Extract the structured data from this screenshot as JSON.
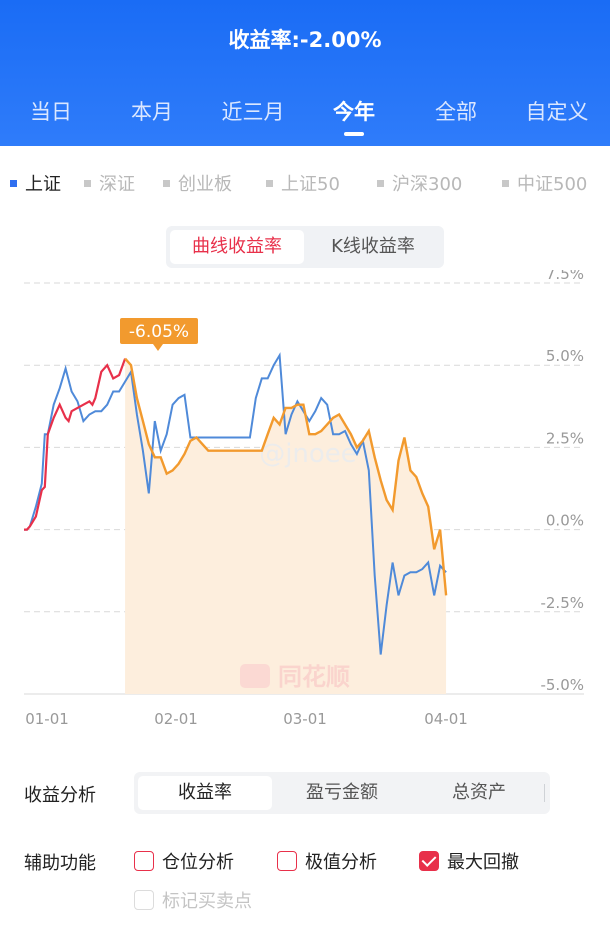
{
  "header": {
    "title": "收益率:-2.00%",
    "tabs": [
      "当日",
      "本月",
      "近三月",
      "今年",
      "全部",
      "自定义"
    ],
    "active_tab": "今年"
  },
  "indices": [
    "上证",
    "深证",
    "创业板",
    "上证50",
    "沪深300",
    "中证500"
  ],
  "active_index": "上证",
  "chart_toggle": {
    "options": [
      "曲线收益率",
      "K线收益率"
    ],
    "active": "曲线收益率"
  },
  "chart_data": {
    "type": "line",
    "y_ticks": [
      "7.5%",
      "5.0%",
      "2.5%",
      "0.0%",
      "-2.5%",
      "-5.0%"
    ],
    "x_ticks": [
      "01-01",
      "02-01",
      "03-01",
      "04-01"
    ],
    "ylim": [
      -5.0,
      7.5
    ],
    "drawdown_label": "-6.05%",
    "watermark": "@jnoee",
    "logo_text": "同花顺",
    "colors": {
      "return_line": "#f29a2e",
      "drawdown_line": "#e8304a",
      "index_line": "#4f8ad9",
      "drawdown_fill": "#fdeedd"
    },
    "series": [
      {
        "values": [
          [
            0,
            0.0
          ],
          [
            0.5,
            0.0
          ],
          [
            1,
            0.1
          ],
          [
            2,
            0.4
          ],
          [
            3,
            1.2
          ],
          [
            3.5,
            1.3
          ],
          [
            4,
            2.9
          ],
          [
            5,
            3.4
          ],
          [
            6,
            3.8
          ],
          [
            7,
            3.4
          ],
          [
            7.5,
            3.3
          ],
          [
            8,
            3.6
          ],
          [
            9,
            3.7
          ],
          [
            10,
            3.8
          ],
          [
            11,
            3.9
          ],
          [
            11.5,
            3.8
          ],
          [
            12,
            4.0
          ],
          [
            13,
            4.8
          ],
          [
            14,
            5.0
          ],
          [
            15,
            4.6
          ],
          [
            16,
            4.7
          ],
          [
            17,
            5.2
          ]
        ]
      },
      {
        "values": [
          [
            17,
            5.2
          ],
          [
            18,
            5.0
          ],
          [
            19,
            4.0
          ],
          [
            20,
            3.3
          ],
          [
            21,
            2.6
          ],
          [
            22,
            2.2
          ],
          [
            23,
            2.2
          ],
          [
            24,
            1.7
          ],
          [
            25,
            1.8
          ],
          [
            26,
            2.0
          ],
          [
            27,
            2.3
          ],
          [
            28,
            2.7
          ],
          [
            29,
            2.8
          ],
          [
            30,
            2.6
          ],
          [
            31,
            2.4
          ],
          [
            32,
            2.4
          ],
          [
            33,
            2.4
          ],
          [
            34,
            2.4
          ],
          [
            35,
            2.4
          ],
          [
            36,
            2.4
          ],
          [
            37,
            2.4
          ],
          [
            38,
            2.4
          ],
          [
            39,
            2.4
          ],
          [
            40,
            2.4
          ],
          [
            41,
            2.9
          ],
          [
            42,
            3.4
          ],
          [
            43,
            3.2
          ],
          [
            44,
            3.7
          ],
          [
            45,
            3.7
          ],
          [
            46,
            3.8
          ],
          [
            47,
            3.8
          ],
          [
            48,
            2.9
          ],
          [
            49,
            2.9
          ],
          [
            50,
            3.0
          ],
          [
            51,
            3.2
          ],
          [
            52,
            3.4
          ],
          [
            53,
            3.5
          ],
          [
            54,
            3.2
          ],
          [
            55,
            2.9
          ],
          [
            56,
            2.5
          ],
          [
            57,
            2.7
          ],
          [
            58,
            3.0
          ],
          [
            59,
            2.2
          ],
          [
            60,
            1.5
          ],
          [
            61,
            0.9
          ],
          [
            62,
            0.6
          ],
          [
            63,
            2.1
          ],
          [
            64,
            2.8
          ],
          [
            65,
            1.8
          ],
          [
            66,
            1.6
          ],
          [
            67,
            1.1
          ],
          [
            68,
            0.7
          ],
          [
            69,
            -0.6
          ],
          [
            70,
            0.0
          ],
          [
            71,
            -2.0
          ]
        ]
      },
      {
        "values": [
          [
            0,
            0.0
          ],
          [
            0.5,
            0.0
          ],
          [
            1,
            0.1
          ],
          [
            2,
            0.7
          ],
          [
            3,
            1.4
          ],
          [
            3.5,
            2.9
          ],
          [
            4,
            2.9
          ],
          [
            5,
            3.8
          ],
          [
            6,
            4.3
          ],
          [
            7,
            4.9
          ],
          [
            8,
            4.2
          ],
          [
            9,
            3.9
          ],
          [
            10,
            3.3
          ],
          [
            11,
            3.5
          ],
          [
            12,
            3.6
          ],
          [
            13,
            3.6
          ],
          [
            14,
            3.8
          ],
          [
            15,
            4.2
          ],
          [
            16,
            4.2
          ],
          [
            17,
            4.5
          ],
          [
            18,
            4.8
          ],
          [
            19,
            3.5
          ],
          [
            20,
            2.4
          ],
          [
            21,
            1.1
          ],
          [
            22,
            3.3
          ],
          [
            23,
            2.4
          ],
          [
            24,
            2.9
          ],
          [
            25,
            3.8
          ],
          [
            26,
            4.0
          ],
          [
            27,
            4.1
          ],
          [
            28,
            2.8
          ],
          [
            29,
            2.8
          ],
          [
            30,
            2.8
          ],
          [
            31,
            2.8
          ],
          [
            32,
            2.8
          ],
          [
            33,
            2.8
          ],
          [
            34,
            2.8
          ],
          [
            35,
            2.8
          ],
          [
            36,
            2.8
          ],
          [
            37,
            2.8
          ],
          [
            38,
            2.8
          ],
          [
            39,
            4.0
          ],
          [
            40,
            4.6
          ],
          [
            41,
            4.6
          ],
          [
            42,
            5.0
          ],
          [
            43,
            5.3
          ],
          [
            44,
            2.9
          ],
          [
            45,
            3.5
          ],
          [
            46,
            3.9
          ],
          [
            47,
            3.6
          ],
          [
            48,
            3.3
          ],
          [
            49,
            3.6
          ],
          [
            50,
            4.0
          ],
          [
            51,
            3.8
          ],
          [
            52,
            2.9
          ],
          [
            53,
            2.9
          ],
          [
            54,
            3.0
          ],
          [
            55,
            2.6
          ],
          [
            56,
            2.3
          ],
          [
            57,
            2.7
          ],
          [
            58,
            1.8
          ],
          [
            59,
            -1.4
          ],
          [
            60,
            -3.8
          ],
          [
            61,
            -2.3
          ],
          [
            62,
            -1.0
          ],
          [
            63,
            -2.0
          ],
          [
            64,
            -1.4
          ],
          [
            65,
            -1.3
          ],
          [
            66,
            -1.3
          ],
          [
            67,
            -1.2
          ],
          [
            68,
            -1.0
          ],
          [
            69,
            -2.0
          ],
          [
            70,
            -1.1
          ],
          [
            71,
            -1.3
          ]
        ]
      }
    ],
    "drawdown_range": [
      17,
      71
    ],
    "x_range": [
      0,
      72
    ]
  },
  "analysis": {
    "label": "收益分析",
    "options": [
      "收益率",
      "盈亏金额",
      "总资产"
    ],
    "active": "收益率"
  },
  "aux": {
    "label": "辅助功能",
    "options": [
      {
        "label": "仓位分析",
        "checked": false,
        "disabled": false
      },
      {
        "label": "极值分析",
        "checked": false,
        "disabled": false
      },
      {
        "label": "最大回撤",
        "checked": true,
        "disabled": false
      },
      {
        "label": "标记买卖点",
        "checked": false,
        "disabled": true
      }
    ]
  }
}
